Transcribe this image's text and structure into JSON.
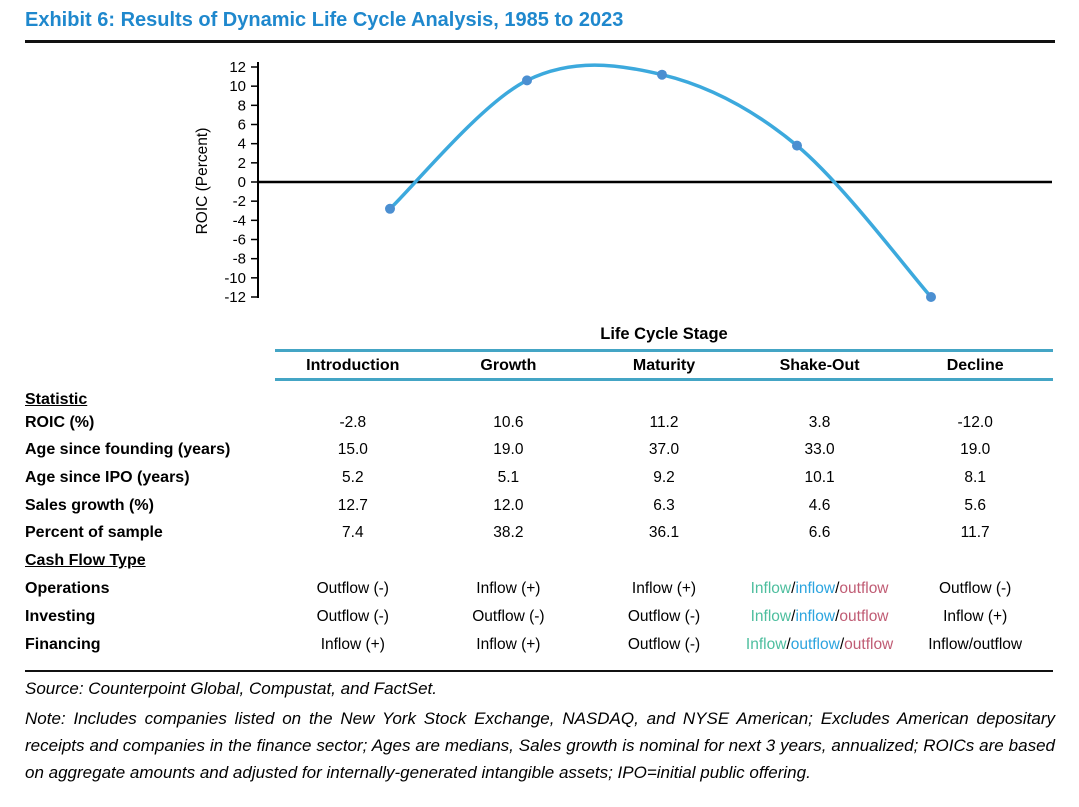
{
  "title": "Exhibit 6: Results of Dynamic Life Cycle Analysis, 1985 to 2023",
  "colors": {
    "title_blue": "#1F88CD",
    "rule_teal": "#44A5C5",
    "line_blue": "#3CA9DD",
    "marker_blue": "#4B8FD1",
    "inflow_green": "#4DBE9E",
    "inflow_blue": "#2BA4DF",
    "outflow_red": "#C05C74"
  },
  "chart_data": {
    "type": "line",
    "title": "",
    "xlabel": "",
    "ylabel": "ROIC (Percent)",
    "categories": [
      "Introduction",
      "Growth",
      "Maturity",
      "Shake-Out",
      "Decline"
    ],
    "series": [
      {
        "name": "ROIC (%)",
        "values": [
          -2.8,
          10.6,
          11.2,
          3.8,
          -12.0
        ]
      }
    ],
    "ylim": [
      -12,
      12
    ],
    "ytick_step": 2,
    "grid": false,
    "legend": "none",
    "zero_line": true,
    "smooth": true,
    "marker": "circle"
  },
  "table": {
    "group_header": "Life Cycle Stage",
    "columns": [
      "Introduction",
      "Growth",
      "Maturity",
      "Shake-Out",
      "Decline"
    ],
    "sections": [
      {
        "label": "Statistic",
        "rows": [
          {
            "label": "ROIC (%)",
            "values": [
              "-2.8",
              "10.6",
              "11.2",
              "3.8",
              "-12.0"
            ]
          },
          {
            "label": "Age since founding (years)",
            "values": [
              "15.0",
              "19.0",
              "37.0",
              "33.0",
              "19.0"
            ]
          },
          {
            "label": "Age since IPO (years)",
            "values": [
              "5.2",
              "5.1",
              "9.2",
              "10.1",
              "8.1"
            ]
          },
          {
            "label": "Sales growth (%)",
            "values": [
              "12.7",
              "12.0",
              "6.3",
              "4.6",
              "5.6"
            ]
          },
          {
            "label": "Percent of sample",
            "values": [
              "7.4",
              "38.2",
              "36.1",
              "6.6",
              "11.7"
            ]
          }
        ]
      },
      {
        "label": "Cash Flow Type",
        "rows": [
          {
            "label": "Operations",
            "values": [
              "Outflow (-)",
              "Inflow (+)",
              "Inflow (+)",
              [
                [
                  "Inflow",
                  "green"
                ],
                [
                  "/",
                  ""
                ],
                [
                  "inflow",
                  "blue"
                ],
                [
                  "/",
                  ""
                ],
                [
                  "outflow",
                  "red"
                ]
              ],
              "Outflow (-)"
            ]
          },
          {
            "label": "Investing",
            "values": [
              "Outflow (-)",
              "Outflow (-)",
              "Outflow (-)",
              [
                [
                  "Inflow",
                  "green"
                ],
                [
                  "/",
                  ""
                ],
                [
                  "inflow",
                  "blue"
                ],
                [
                  "/",
                  ""
                ],
                [
                  "outflow",
                  "red"
                ]
              ],
              "Inflow (+)"
            ]
          },
          {
            "label": "Financing",
            "values": [
              "Inflow (+)",
              "Inflow (+)",
              "Outflow (-)",
              [
                [
                  "Inflow",
                  "green"
                ],
                [
                  "/",
                  ""
                ],
                [
                  "outflow",
                  "blue"
                ],
                [
                  "/",
                  ""
                ],
                [
                  "outflow",
                  "red"
                ]
              ],
              "Inflow/outflow"
            ]
          }
        ]
      }
    ]
  },
  "footer": {
    "source": "Source: Counterpoint Global, Compustat, and FactSet.",
    "note": "Note: Includes companies listed on the New York Stock Exchange, NASDAQ, and NYSE American; Excludes American depositary receipts and companies in the finance sector; Ages are medians, Sales growth is nominal for next 3 years, annualized; ROICs are based on aggregate amounts and adjusted for internally-generated intangible assets; IPO=initial public offering."
  }
}
